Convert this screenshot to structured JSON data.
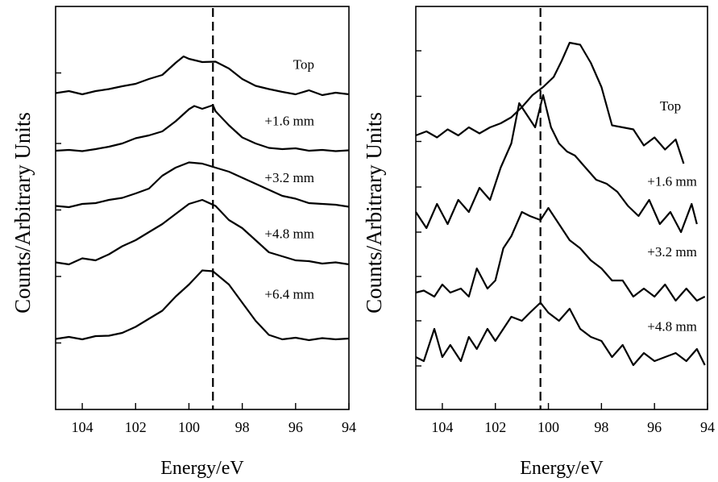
{
  "chart_data": [
    {
      "type": "line",
      "ylabel": "Counts/Arbitrary Units",
      "xlabel": "Energy/eV",
      "xlim": [
        105,
        94
      ],
      "xticks": [
        104,
        102,
        100,
        98,
        96,
        94
      ],
      "ylim": [
        0,
        100
      ],
      "yticks": [
        16.5,
        33,
        49.5,
        66,
        83.5
      ],
      "reference_line_x": 99.1,
      "series": [
        {
          "name": "Top",
          "label_x": 95.3,
          "label_y": 84.5,
          "x": [
            105,
            104.5,
            104,
            103.5,
            103,
            102.5,
            102,
            101.5,
            101,
            100.5,
            100.2,
            100,
            99.5,
            99,
            98.5,
            98,
            97.5,
            97,
            96.5,
            96,
            95.5,
            95,
            94.5,
            94
          ],
          "values": [
            78.5,
            79,
            78.2,
            79,
            79.5,
            80.2,
            80.8,
            82,
            83,
            86,
            87.6,
            87,
            86.2,
            86.3,
            84.6,
            82,
            80.3,
            79.5,
            78.8,
            78.2,
            79.2,
            78,
            78.6,
            78.2
          ]
        },
        {
          "name": "+1.6 mm",
          "label_x": 95.3,
          "label_y": 70.5,
          "x": [
            105,
            104.5,
            104,
            103.5,
            103,
            102.5,
            102,
            101.5,
            101,
            100.5,
            100,
            99.8,
            99.5,
            99.1,
            99,
            98.5,
            98,
            97.5,
            97,
            96.5,
            96,
            95.5,
            95,
            94.5,
            94
          ],
          "values": [
            64.2,
            64.4,
            64.1,
            64.6,
            65.2,
            66,
            67.3,
            68,
            69,
            71.5,
            74.5,
            75.3,
            74.6,
            75.5,
            74,
            70.5,
            67.5,
            66,
            64.9,
            64.6,
            64.8,
            64.2,
            64.4,
            64.1,
            64.3
          ]
        },
        {
          "name": "+3.2 mm",
          "label_x": 95.3,
          "label_y": 56.4,
          "x": [
            105,
            104.5,
            104,
            103.5,
            103,
            102.5,
            102,
            101.5,
            101,
            100.5,
            100,
            99.5,
            99,
            98.5,
            98,
            97.5,
            97,
            96.5,
            96,
            95.5,
            95,
            94.5,
            94
          ],
          "values": [
            50.5,
            50.2,
            51,
            51.2,
            52,
            52.5,
            53.6,
            54.8,
            58,
            60,
            61.3,
            61,
            60,
            59,
            57.5,
            56,
            54.5,
            53,
            52.3,
            51.2,
            51,
            50.8,
            50.3
          ]
        },
        {
          "name": "+4.8 mm",
          "label_x": 95.3,
          "label_y": 42.5,
          "x": [
            105,
            104.5,
            104,
            103.5,
            103,
            102.5,
            102,
            101.5,
            101,
            100.5,
            100,
            99.5,
            99,
            98.5,
            98,
            97.5,
            97,
            96.5,
            96,
            95.5,
            95,
            94.5,
            94
          ],
          "values": [
            36.5,
            36,
            37.5,
            37,
            38.5,
            40.5,
            42,
            44,
            46,
            48.5,
            51,
            52,
            50.5,
            47,
            45,
            42,
            39,
            38,
            37,
            36.8,
            36.2,
            36.5,
            36
          ]
        },
        {
          "name": "+6.4 mm",
          "label_x": 95.3,
          "label_y": 27.5,
          "x": [
            105,
            104.5,
            104,
            103.5,
            103,
            102.5,
            102,
            101.5,
            101,
            100.5,
            100,
            99.5,
            99.1,
            98.5,
            98,
            97.5,
            97,
            96.5,
            96,
            95.5,
            95,
            94.5,
            94
          ],
          "values": [
            17.5,
            18,
            17.4,
            18.2,
            18.3,
            19,
            20.5,
            22.5,
            24.5,
            28,
            31,
            34.5,
            34.3,
            31,
            26.5,
            22,
            18.5,
            17.4,
            17.8,
            17.2,
            17.7,
            17.4,
            17.6
          ]
        }
      ]
    },
    {
      "type": "line",
      "ylabel": "Counts/Arbitrary Units",
      "xlabel": "Energy/eV",
      "xlim": [
        105,
        94
      ],
      "xticks": [
        104,
        102,
        100,
        98,
        96,
        94
      ],
      "ylim": [
        0,
        100
      ],
      "yticks": [
        10.8,
        22,
        33,
        44,
        55.2,
        66.5,
        77.7,
        89
      ],
      "reference_line_x": 100.3,
      "series": [
        {
          "name": "Top",
          "label_x": 95.0,
          "label_y": 74.2,
          "x": [
            105,
            104.6,
            104.2,
            103.8,
            103.4,
            103,
            102.6,
            102.2,
            101.8,
            101.4,
            101,
            100.6,
            100.2,
            99.8,
            99.5,
            99.2,
            98.8,
            98.4,
            98,
            97.6,
            97.2,
            96.8,
            96.4,
            96,
            95.6,
            95.2,
            94.9
          ],
          "values": [
            68,
            69,
            67.5,
            69.5,
            68,
            70,
            68.5,
            70,
            71,
            72.5,
            75,
            78,
            80,
            82.5,
            86.5,
            91,
            90.5,
            86,
            80,
            70.5,
            70,
            69.5,
            65.5,
            67.5,
            64.5,
            67,
            61
          ]
        },
        {
          "name": "+1.6 mm",
          "label_x": 94.4,
          "label_y": 55.5,
          "x": [
            105,
            104.6,
            104.2,
            103.8,
            103.4,
            103,
            102.6,
            102.2,
            101.8,
            101.4,
            101.1,
            100.8,
            100.5,
            100.2,
            99.9,
            99.6,
            99.3,
            99,
            98.6,
            98.2,
            97.8,
            97.4,
            97,
            96.6,
            96.2,
            95.8,
            95.4,
            95,
            94.6,
            94.4
          ],
          "values": [
            49,
            45,
            51,
            46,
            52,
            49,
            55,
            52,
            60,
            66,
            76,
            73,
            70,
            78,
            70,
            66,
            64,
            63,
            60,
            57,
            56,
            54,
            50.5,
            48,
            52,
            46,
            49,
            44,
            51,
            46
          ]
        },
        {
          "name": "+3.2 mm",
          "label_x": 94.4,
          "label_y": 38.0,
          "x": [
            105,
            104.7,
            104.3,
            104,
            103.7,
            103.3,
            103,
            102.7,
            102.3,
            102,
            101.7,
            101.4,
            101,
            100.7,
            100.3,
            100,
            99.6,
            99.2,
            98.8,
            98.4,
            98,
            97.6,
            97.2,
            96.8,
            96.4,
            96,
            95.6,
            95.2,
            94.8,
            94.4,
            94.1
          ],
          "values": [
            29,
            29.5,
            28,
            31,
            29,
            30,
            28,
            35,
            30,
            32,
            40,
            43,
            49,
            48,
            47,
            50,
            46,
            42,
            40,
            37,
            35,
            32,
            32,
            28,
            30,
            28,
            31,
            27,
            30,
            27,
            28
          ]
        },
        {
          "name": "+4.8 mm",
          "label_x": 94.4,
          "label_y": 19.5,
          "x": [
            105,
            104.7,
            104.3,
            104,
            103.7,
            103.3,
            103,
            102.7,
            102.3,
            102,
            101.7,
            101.4,
            101,
            100.7,
            100.3,
            100,
            99.6,
            99.2,
            98.8,
            98.4,
            98,
            97.6,
            97.2,
            96.8,
            96.4,
            96,
            95.6,
            95.2,
            94.8,
            94.4,
            94.1
          ],
          "values": [
            13,
            12,
            20,
            13,
            16,
            12,
            18,
            15,
            20,
            17,
            20,
            23,
            22,
            24,
            26.5,
            24,
            22,
            25,
            20,
            18,
            17,
            13,
            16,
            11,
            14,
            12,
            13,
            14,
            12,
            15,
            11
          ]
        }
      ]
    }
  ]
}
